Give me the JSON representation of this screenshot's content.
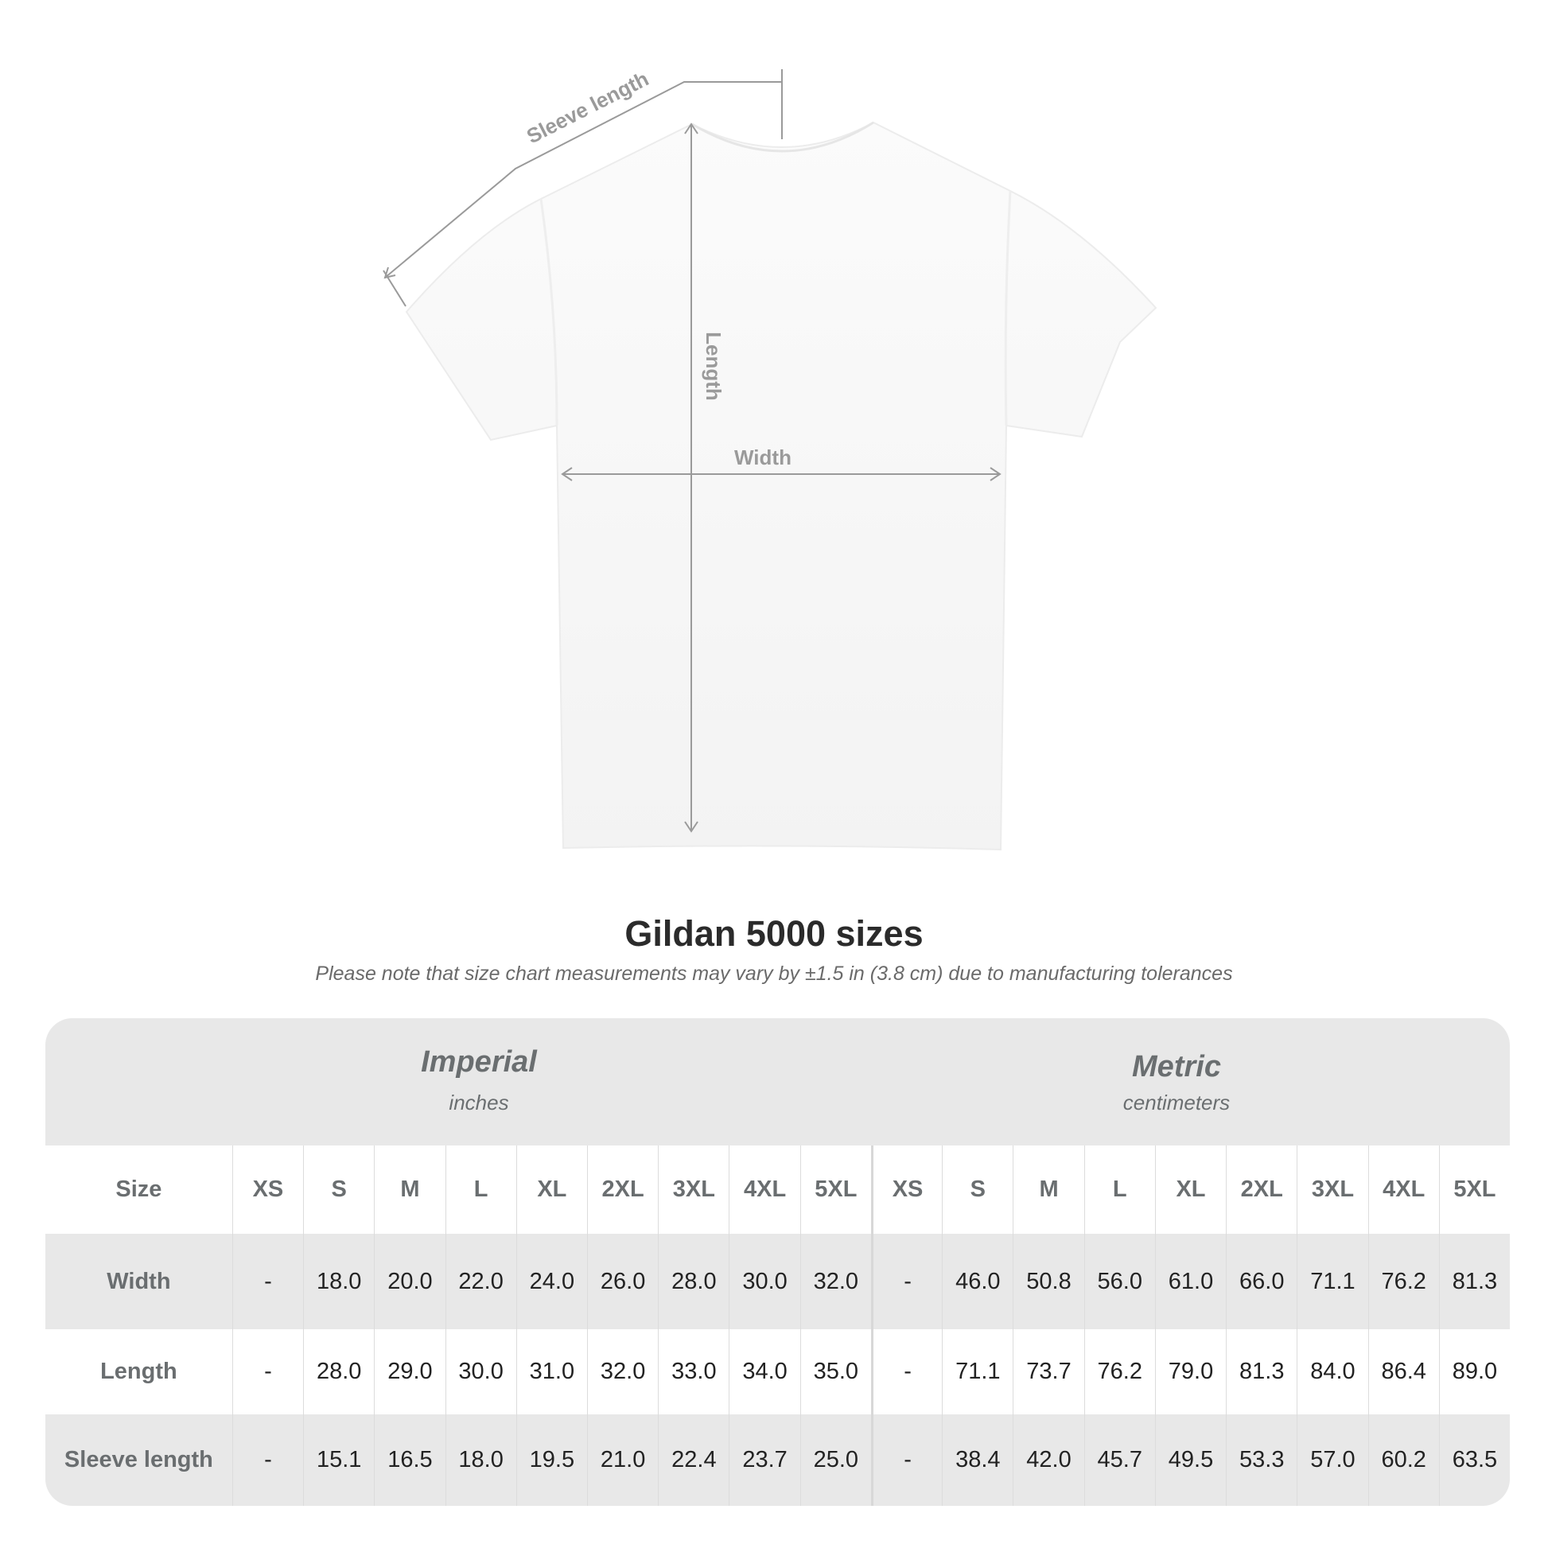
{
  "diagram": {
    "sleeve_label": "Sleeve length",
    "length_label": "Length",
    "width_label": "Width"
  },
  "title": "Gildan 5000 sizes",
  "note": "Please note that size chart measurements may vary by ±1.5 in (3.8 cm) due to manufacturing tolerances",
  "table": {
    "imperial": {
      "label": "Imperial",
      "unit": "inches"
    },
    "metric": {
      "label": "Metric",
      "unit": "centimeters"
    },
    "size_label": "Size",
    "sizes": [
      "XS",
      "S",
      "M",
      "L",
      "XL",
      "2XL",
      "3XL",
      "4XL",
      "5XL"
    ],
    "rows": [
      {
        "label": "Width",
        "imperial": [
          "-",
          "18.0",
          "20.0",
          "22.0",
          "24.0",
          "26.0",
          "28.0",
          "30.0",
          "32.0"
        ],
        "metric": [
          "-",
          "46.0",
          "50.8",
          "56.0",
          "61.0",
          "66.0",
          "71.1",
          "76.2",
          "81.3"
        ]
      },
      {
        "label": "Length",
        "imperial": [
          "-",
          "28.0",
          "29.0",
          "30.0",
          "31.0",
          "32.0",
          "33.0",
          "34.0",
          "35.0"
        ],
        "metric": [
          "-",
          "71.1",
          "73.7",
          "76.2",
          "79.0",
          "81.3",
          "84.0",
          "86.4",
          "89.0"
        ]
      },
      {
        "label": "Sleeve length",
        "imperial": [
          "-",
          "15.1",
          "16.5",
          "18.0",
          "19.5",
          "21.0",
          "22.4",
          "23.7",
          "25.0"
        ],
        "metric": [
          "-",
          "38.4",
          "42.0",
          "45.7",
          "49.5",
          "53.3",
          "57.0",
          "60.2",
          "63.5"
        ]
      }
    ]
  }
}
